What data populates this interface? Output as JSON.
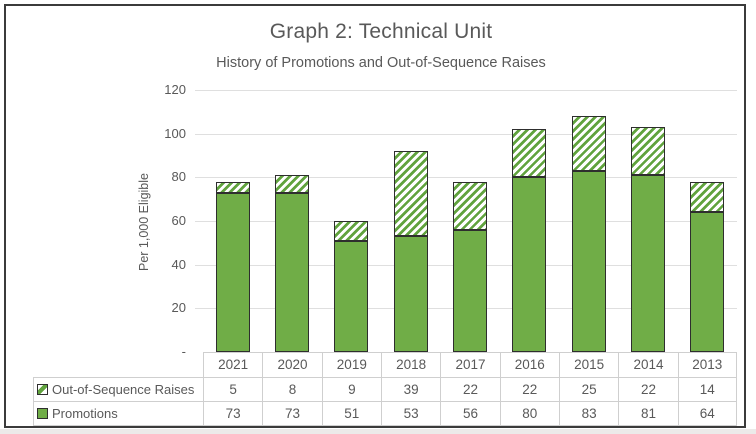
{
  "chart_data": {
    "type": "bar",
    "stacked": true,
    "title": "Graph 2: Technical Unit",
    "subtitle": "History of Promotions and Out-of-Sequence Raises",
    "ylabel": "Per 1,000 Eligible",
    "categories": [
      "2021",
      "2020",
      "2019",
      "2018",
      "2017",
      "2016",
      "2015",
      "2014",
      "2013"
    ],
    "series": [
      {
        "name": "Out-of-Sequence Raises",
        "swatch": "hatched",
        "values": [
          5,
          8,
          9,
          39,
          22,
          22,
          25,
          22,
          14
        ]
      },
      {
        "name": "Promotions",
        "swatch": "solid",
        "values": [
          73,
          73,
          51,
          53,
          56,
          80,
          83,
          81,
          64
        ]
      }
    ],
    "ylim": [
      0,
      120
    ],
    "ytick_step": 20,
    "ytick_labels": [
      "120",
      "100",
      "80",
      "60",
      "40",
      "20",
      "-"
    ],
    "grid": true,
    "legend_position": "data-table-left",
    "colors": {
      "solid_fill": "#70AD47",
      "hatch_stripe": "#61A33E",
      "bar_border": "#2E2E2E",
      "grid_line": "#DFDFDF",
      "text": "#595959",
      "table_border": "#CFCFCF",
      "chart_border": "#3B3B3B"
    }
  }
}
